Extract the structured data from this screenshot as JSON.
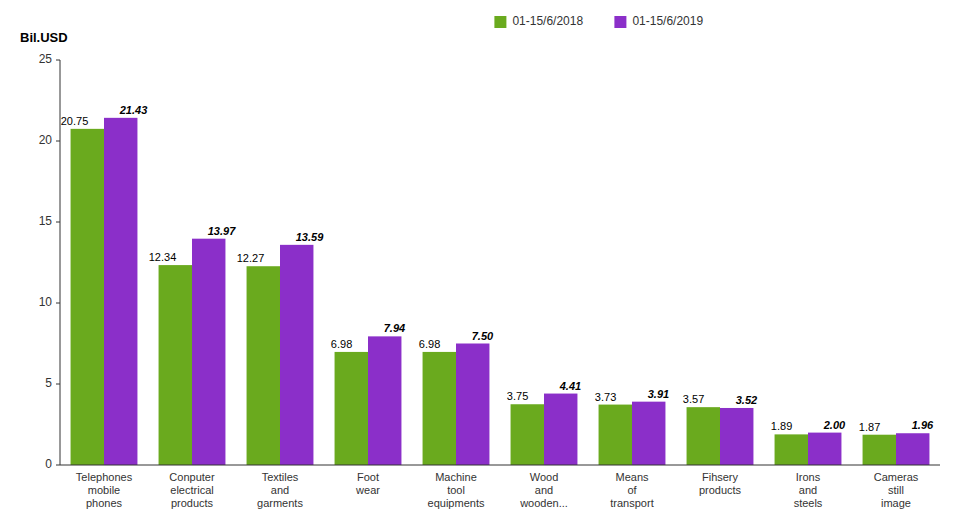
{
  "chart_data": {
    "type": "bar",
    "ylabel": "Bil.USD",
    "categories": [
      "Telephones\nmobile\nphones",
      "Conputer\nelectrical\nproducts",
      "Textiles\nand\ngarments",
      "Foot\nwear",
      "Machine\ntool\nequipments",
      "Wood\nand\nwooden...",
      "Means\nof\ntransport",
      "Fihsery\nproducts",
      "Irons\nand\nsteels",
      "Cameras\nstill\nimage"
    ],
    "series": [
      {
        "name": "01-15/6/2018",
        "color": "#6aaa1e",
        "values": [
          20.75,
          12.34,
          12.27,
          6.98,
          6.98,
          3.75,
          3.73,
          3.57,
          1.89,
          1.87
        ],
        "value_labels": [
          "20.75",
          "12.34",
          "12.27",
          "6.98",
          "6.98",
          "3.75",
          "3.73",
          "3.57",
          "1.89",
          "1.87"
        ]
      },
      {
        "name": "01-15/6/2019",
        "color": "#8b2fc9",
        "values": [
          21.43,
          13.97,
          13.59,
          7.94,
          7.5,
          4.41,
          3.91,
          3.52,
          2.0,
          1.96
        ],
        "value_labels": [
          "21.43",
          "13.97",
          "13.59",
          "7.94",
          "7.50",
          "4.41",
          "3.91",
          "3.52",
          "2.00",
          "1.96"
        ]
      }
    ],
    "ylim": [
      0,
      25
    ],
    "yticks": [
      0,
      5,
      10,
      15,
      20,
      25
    ],
    "grid": false,
    "legend": "top",
    "data_labels": true
  }
}
